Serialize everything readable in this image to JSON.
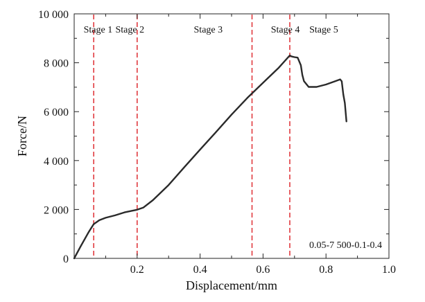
{
  "chart_data": {
    "type": "line",
    "xlabel": "Displacement/mm",
    "ylabel": "Force/N",
    "xlim": [
      0,
      1.0
    ],
    "ylim": [
      0,
      10000
    ],
    "xticks": [
      {
        "value": 0.2,
        "label": "0.2"
      },
      {
        "value": 0.4,
        "label": "0.4"
      },
      {
        "value": 0.6,
        "label": "0.6"
      },
      {
        "value": 0.8,
        "label": "0.8"
      },
      {
        "value": 1.0,
        "label": "1.0"
      }
    ],
    "xminor": [
      0.1,
      0.3,
      0.5,
      0.7,
      0.9
    ],
    "yticks": [
      {
        "value": 0,
        "label": "0"
      },
      {
        "value": 2000,
        "label": "2 000"
      },
      {
        "value": 4000,
        "label": "4 000"
      },
      {
        "value": 6000,
        "label": "6 000"
      },
      {
        "value": 8000,
        "label": "8 000"
      },
      {
        "value": 10000,
        "label": "10 000"
      }
    ],
    "yminor": [
      1000,
      3000,
      5000,
      7000,
      9000
    ],
    "grid": false,
    "series": [
      {
        "color": "#2a2a2a",
        "points": [
          [
            0.0,
            0
          ],
          [
            0.02,
            480
          ],
          [
            0.045,
            1050
          ],
          [
            0.062,
            1400
          ],
          [
            0.08,
            1560
          ],
          [
            0.1,
            1660
          ],
          [
            0.13,
            1760
          ],
          [
            0.16,
            1880
          ],
          [
            0.185,
            1950
          ],
          [
            0.2,
            1990
          ],
          [
            0.22,
            2080
          ],
          [
            0.25,
            2380
          ],
          [
            0.3,
            3000
          ],
          [
            0.35,
            3730
          ],
          [
            0.4,
            4450
          ],
          [
            0.45,
            5160
          ],
          [
            0.5,
            5880
          ],
          [
            0.55,
            6560
          ],
          [
            0.6,
            7180
          ],
          [
            0.65,
            7800
          ],
          [
            0.685,
            8300
          ],
          [
            0.69,
            8260
          ],
          [
            0.7,
            8230
          ],
          [
            0.71,
            8210
          ],
          [
            0.72,
            7900
          ],
          [
            0.725,
            7500
          ],
          [
            0.73,
            7250
          ],
          [
            0.745,
            7010
          ],
          [
            0.77,
            7010
          ],
          [
            0.8,
            7110
          ],
          [
            0.83,
            7250
          ],
          [
            0.845,
            7320
          ],
          [
            0.85,
            7240
          ],
          [
            0.855,
            6700
          ],
          [
            0.86,
            6350
          ],
          [
            0.865,
            5600
          ]
        ]
      }
    ],
    "stage_lines": {
      "color": "#e0393e",
      "x": [
        0.062,
        0.2,
        0.565,
        0.685
      ]
    },
    "stage_labels": [
      {
        "label": "Stage 1",
        "x": 0.03
      },
      {
        "label": "Stage 2",
        "x": 0.131
      },
      {
        "label": "Stage 3",
        "x": 0.38
      },
      {
        "label": "Stage 4",
        "x": 0.625
      },
      {
        "label": "Stage 5",
        "x": 0.747
      }
    ],
    "annotation": "0.05-7 500-0.1-0.4"
  }
}
